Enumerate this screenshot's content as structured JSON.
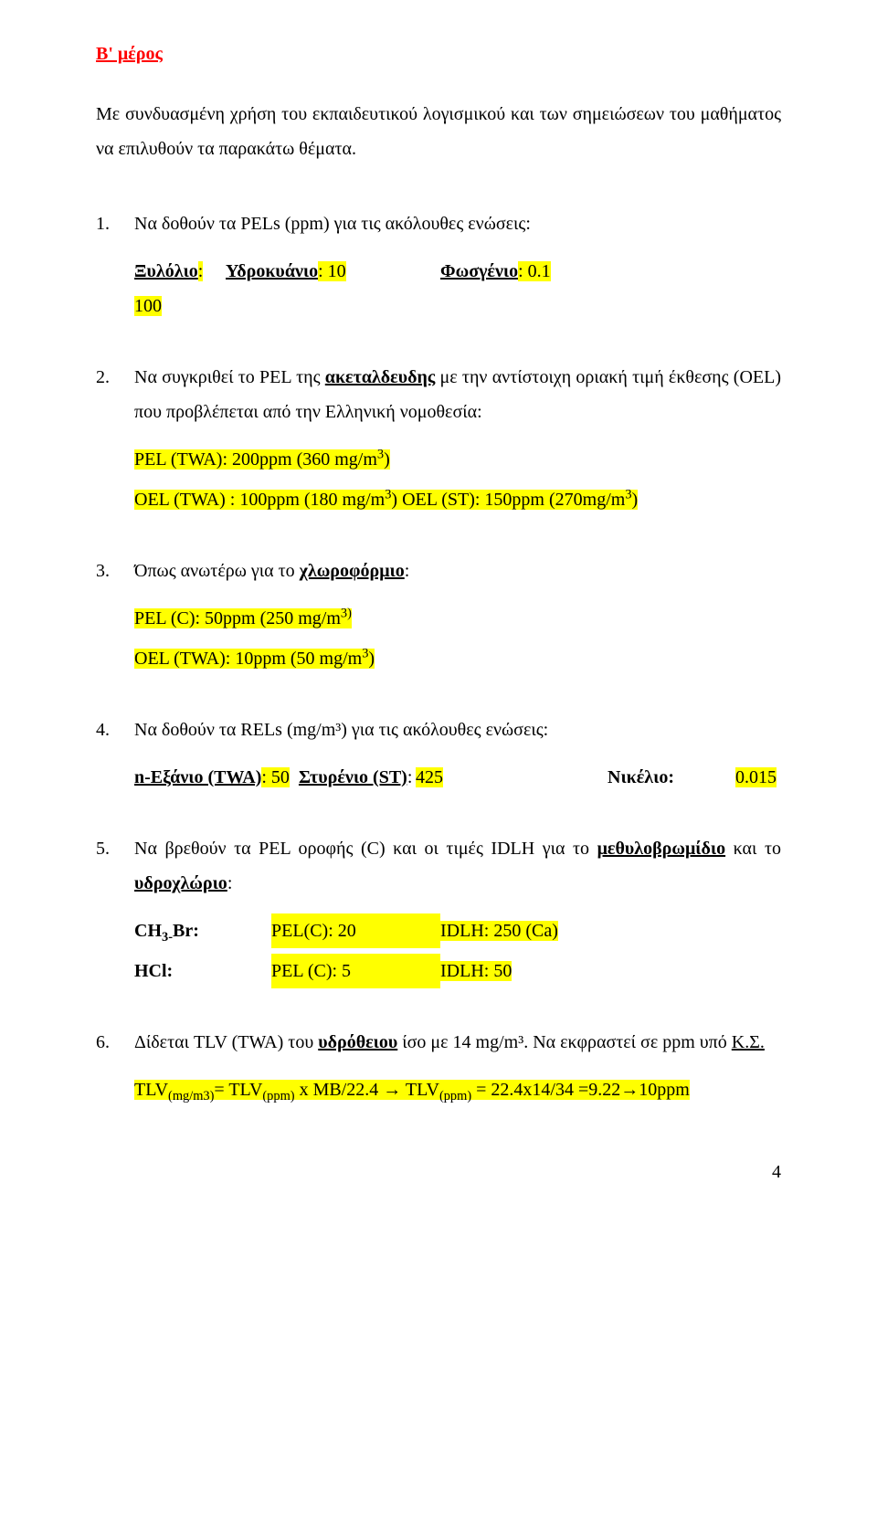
{
  "title": "Β' μέρος",
  "intro": "Με συνδυασμένη χρήση του εκπαιδευτικού λογισμικού και των σημειώσεων του μαθήματος να επιλυθούν  τα παρακάτω θέματα.",
  "q1": {
    "num": "1.",
    "text": "Να δοθούν τα PELs (ppm) για τις ακόλουθες ενώσεις:",
    "a": "Ξυλόλιο",
    "av": ": 100",
    "b": "Υδροκυάνιο",
    "bv": ": 10",
    "c": "Φωσγένιο",
    "cv": ": 0.1"
  },
  "q2": {
    "num": "2.",
    "prefix": "Να συγκριθεί το PEL της ",
    "kw": "ακεταλδευδης",
    "suffix": " με την αντίστοιχη οριακή τιμή έκθεσης (OEL) που προβλέπεται από την Ελληνική νομοθεσία:",
    "l1a": "PEL (TWA): 200ppm (360 mg/m",
    "l1b": ")",
    "l2a": "OEL (TWA) : 100ppm (180 mg/m",
    "l2b": ")  OEL (ST): 150ppm (270mg/m",
    "l2c": ")"
  },
  "q3": {
    "num": "3.",
    "prefix": "Όπως ανωτέρω για το ",
    "kw": "χλωροφόρμιο",
    "suffix": ":",
    "l1a": "PEL (C): 50ppm (250 mg/m",
    "l2a": "OEL (TWA): 10ppm (50 mg/m",
    "l2b": ")"
  },
  "q4": {
    "num": "4.",
    "text": "Να δοθούν τα RELs (mg/m³) για τις ακόλουθες ενώσεις:",
    "c1a": "n-Εξάνιο (TWA)",
    "c1v": ": 50",
    "c2a": "Στυρένιο (ST)",
    "c2v": ":",
    "c2n": "425",
    "c3a": "Νικέλιο:",
    "c3v": "0.015"
  },
  "q5": {
    "num": "5.",
    "prefix": "Να βρεθούν τα PEL οροφής (C) και οι τιμές IDLH για το ",
    "kw1": "μεθυλοβρωμίδιο",
    "mid": " και το ",
    "kw2": "υδροχλώριο",
    "suffix": ":",
    "r1a": "CH",
    "r1b": "Br:",
    "r1c": "PEL(C): 20",
    "r1d": "IDLH: 250 (Ca)",
    "r2a": "HCl:",
    "r2c": "PEL (C): 5",
    "r2d": "IDLH: 50"
  },
  "q6": {
    "num": "6.",
    "prefix": "Δίδεται TLV (TWA) του ",
    "kw": "υδρόθειου",
    "mid": " ίσο με 14 mg/m³. Να εκφραστεί σε ppm υπό ",
    "ks": "Κ.Σ.",
    "l1a": "TLV",
    "l1b": "= TLV",
    "l1c": " x MB/22.4 ",
    "arrow": "→",
    "l1d": " TLV",
    "l1e": " = 22.4x14/34 =9.22",
    "l1f": "10ppm"
  },
  "page": "4"
}
